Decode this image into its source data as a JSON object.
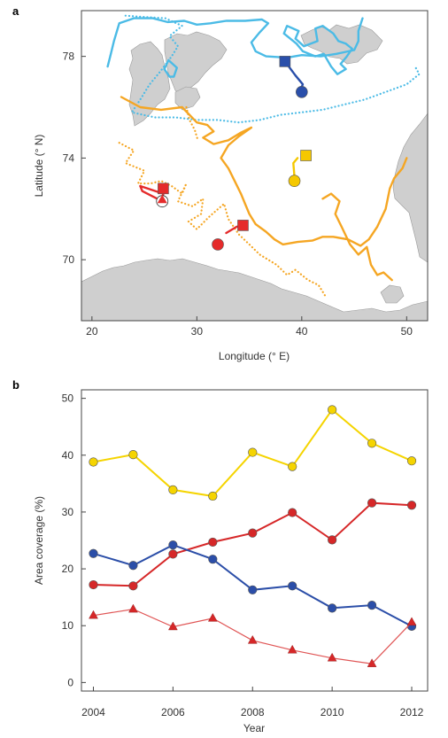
{
  "panels": {
    "a": "a",
    "b": "b"
  },
  "chart_data": [
    {
      "type": "map",
      "xlabel": "Longitude (° E)",
      "ylabel": "Latitude (° N)",
      "xlim": [
        19,
        52
      ],
      "ylim": [
        67.6,
        79.8
      ],
      "xticks": [
        20,
        30,
        40,
        50
      ],
      "yticks": [
        70,
        74,
        78
      ],
      "tracks": [
        {
          "color": "#4bbbe6",
          "style": "solid",
          "points": [
            [
              21.5,
              77.6
            ],
            [
              21.8,
              78.1
            ],
            [
              22.1,
              78.6
            ],
            [
              22.6,
              79.3
            ],
            [
              24.0,
              79.5
            ],
            [
              25.8,
              79.5
            ],
            [
              27.2,
              79.35
            ],
            [
              28.8,
              79.4
            ],
            [
              30.0,
              79.25
            ],
            [
              31.3,
              79.3
            ],
            [
              32.8,
              79.4
            ],
            [
              34.6,
              79.4
            ],
            [
              36.2,
              79.45
            ],
            [
              36.8,
              79.3
            ],
            [
              36.0,
              78.95
            ],
            [
              35.2,
              78.55
            ],
            [
              35.6,
              78.2
            ],
            [
              36.6,
              78.0
            ],
            [
              38.6,
              77.95
            ],
            [
              40.0,
              78.05
            ],
            [
              41.8,
              78.0
            ],
            [
              43.3,
              78.1
            ],
            [
              45.0,
              78.25
            ],
            [
              45.4,
              78.6
            ],
            [
              45.4,
              79.0
            ],
            [
              45.8,
              79.5
            ]
          ]
        },
        {
          "color": "#4bbbe6",
          "style": "solid",
          "points": [
            [
              39.5,
              78.5
            ],
            [
              38.3,
              78.9
            ],
            [
              38.6,
              79.2
            ],
            [
              39.7,
              79.0
            ],
            [
              39.4,
              78.7
            ],
            [
              40.2,
              78.4
            ],
            [
              41.5,
              78.6
            ],
            [
              41.3,
              79.1
            ],
            [
              42.0,
              79.2
            ],
            [
              43.0,
              78.9
            ],
            [
              43.5,
              78.6
            ],
            [
              44.2,
              78.5
            ],
            [
              44.8,
              78.3
            ],
            [
              44.3,
              78.0
            ],
            [
              43.7,
              77.7
            ],
            [
              44.2,
              77.5
            ],
            [
              43.4,
              77.3
            ],
            [
              42.8,
              77.6
            ],
            [
              42.1,
              78.1
            ],
            [
              41.3,
              78.0
            ],
            [
              40.1,
              78.2
            ],
            [
              39.5,
              78.5
            ]
          ]
        },
        {
          "color": "#4bbbe6",
          "style": "solid",
          "points": [
            [
              27.4,
              77.2
            ],
            [
              26.9,
              77.5
            ],
            [
              27.3,
              77.85
            ],
            [
              28.1,
              77.55
            ],
            [
              27.8,
              77.2
            ],
            [
              27.4,
              77.2
            ]
          ]
        },
        {
          "color": "#4bbbe6",
          "style": "dotted",
          "points": [
            [
              23.2,
              79.6
            ],
            [
              25.0,
              79.55
            ],
            [
              27.0,
              79.5
            ],
            [
              28.6,
              79.2
            ],
            [
              27.4,
              78.8
            ],
            [
              28.2,
              78.4
            ],
            [
              27.6,
              78.0
            ],
            [
              26.5,
              77.4
            ],
            [
              25.5,
              76.9
            ],
            [
              24.6,
              76.3
            ],
            [
              23.8,
              75.8
            ],
            [
              26.0,
              75.6
            ],
            [
              28.0,
              75.6
            ],
            [
              30.0,
              75.5
            ],
            [
              32.0,
              75.5
            ],
            [
              34.0,
              75.4
            ],
            [
              36.0,
              75.5
            ],
            [
              38.0,
              75.7
            ],
            [
              40.0,
              75.8
            ],
            [
              42.0,
              75.9
            ],
            [
              44.0,
              76.1
            ],
            [
              46.0,
              76.3
            ],
            [
              48.0,
              76.6
            ],
            [
              50.0,
              76.9
            ],
            [
              51.2,
              77.3
            ],
            [
              50.8,
              77.6
            ]
          ]
        },
        {
          "color": "#f5a623",
          "style": "solid",
          "points": [
            [
              22.8,
              76.4
            ],
            [
              24.6,
              76.0
            ],
            [
              26.6,
              75.9
            ],
            [
              28.6,
              76.0
            ],
            [
              30.0,
              75.4
            ],
            [
              31.0,
              75.3
            ],
            [
              31.6,
              75.05
            ],
            [
              30.6,
              74.8
            ],
            [
              31.6,
              74.55
            ],
            [
              33.0,
              74.7
            ],
            [
              34.2,
              75.0
            ],
            [
              35.2,
              75.2
            ],
            [
              34.0,
              74.85
            ],
            [
              33.0,
              74.5
            ],
            [
              32.3,
              74.0
            ],
            [
              33.0,
              73.6
            ],
            [
              33.6,
              73.1
            ],
            [
              34.2,
              72.6
            ],
            [
              34.6,
              72.2
            ],
            [
              35.0,
              71.8
            ],
            [
              35.6,
              71.4
            ],
            [
              36.6,
              71.1
            ],
            [
              37.4,
              70.8
            ],
            [
              38.2,
              70.6
            ],
            [
              39.6,
              70.7
            ],
            [
              41.0,
              70.75
            ],
            [
              42.0,
              70.9
            ],
            [
              43.0,
              70.9
            ],
            [
              44.4,
              70.8
            ],
            [
              45.6,
              70.55
            ],
            [
              46.4,
              70.8
            ],
            [
              47.2,
              71.3
            ],
            [
              48.0,
              72.0
            ],
            [
              48.4,
              72.8
            ],
            [
              48.8,
              73.2
            ],
            [
              49.6,
              73.6
            ],
            [
              50.0,
              74.0
            ]
          ]
        },
        {
          "color": "#f5a623",
          "style": "solid",
          "points": [
            [
              42.0,
              72.4
            ],
            [
              42.8,
              72.6
            ],
            [
              43.6,
              72.3
            ],
            [
              43.2,
              71.8
            ],
            [
              43.8,
              71.3
            ],
            [
              44.6,
              70.6
            ],
            [
              45.4,
              70.2
            ],
            [
              46.2,
              70.5
            ],
            [
              46.6,
              69.8
            ],
            [
              47.2,
              69.4
            ],
            [
              47.8,
              69.5
            ],
            [
              48.6,
              69.2
            ]
          ]
        },
        {
          "color": "#f5a623",
          "style": "dotted",
          "points": [
            [
              22.6,
              74.6
            ],
            [
              24.0,
              74.3
            ],
            [
              23.2,
              73.8
            ],
            [
              25.0,
              73.5
            ],
            [
              24.4,
              73.0
            ],
            [
              25.6,
              73.0
            ],
            [
              26.6,
              73.1
            ],
            [
              27.6,
              72.9
            ],
            [
              28.6,
              72.6
            ],
            [
              29.0,
              73.0
            ],
            [
              28.2,
              72.3
            ],
            [
              29.6,
              72.1
            ],
            [
              30.6,
              72.4
            ],
            [
              30.4,
              71.8
            ],
            [
              29.2,
              71.5
            ],
            [
              30.0,
              71.2
            ],
            [
              31.2,
              71.7
            ],
            [
              32.6,
              72.2
            ],
            [
              33.0,
              71.6
            ],
            [
              34.0,
              71.0
            ],
            [
              35.0,
              70.6
            ],
            [
              36.0,
              70.2
            ],
            [
              37.6,
              69.8
            ],
            [
              38.6,
              69.4
            ],
            [
              39.4,
              69.6
            ],
            [
              40.6,
              69.2
            ],
            [
              41.6,
              69.0
            ],
            [
              42.2,
              68.6
            ]
          ]
        },
        {
          "color": "#f5a623",
          "style": "dotted",
          "points": [
            [
              29.0,
              76.0
            ],
            [
              29.3,
              75.5
            ],
            [
              29.8,
              75.1
            ],
            [
              30.1,
              74.7
            ]
          ]
        },
        {
          "color": "#e52b2b",
          "style": "solid",
          "points": [
            [
              24.6,
              72.9
            ],
            [
              26.8,
              72.6
            ],
            [
              26.7,
              72.3
            ],
            [
              24.8,
              72.7
            ],
            [
              24.6,
              72.9
            ]
          ]
        },
        {
          "color": "#e52b2b",
          "style": "solid",
          "points": [
            [
              32.8,
              71.05
            ],
            [
              33.8,
              71.3
            ],
            [
              34.4,
              71.35
            ]
          ]
        },
        {
          "color": "#f5c800",
          "style": "solid",
          "points": [
            [
              39.6,
              74.0
            ],
            [
              39.2,
              73.8
            ],
            [
              39.3,
              73.3
            ],
            [
              39.4,
              73.1
            ]
          ]
        },
        {
          "color": "#2a4faa",
          "style": "solid",
          "points": [
            [
              38.4,
              77.8
            ],
            [
              39.4,
              77.25
            ],
            [
              40.1,
              76.9
            ],
            [
              39.8,
              76.6
            ],
            [
              40.0,
              76.45
            ]
          ]
        }
      ],
      "markers": [
        {
          "shape": "square",
          "color": "#2a4faa",
          "lon": 38.4,
          "lat": 77.8
        },
        {
          "shape": "circle",
          "color": "#2a4faa",
          "lon": 40.0,
          "lat": 76.6
        },
        {
          "shape": "square",
          "color": "#f5c800",
          "lon": 40.4,
          "lat": 74.1
        },
        {
          "shape": "circle",
          "color": "#f5c800",
          "lon": 39.3,
          "lat": 73.1
        },
        {
          "shape": "square",
          "color": "#e52b2b",
          "lon": 26.8,
          "lat": 72.8
        },
        {
          "shape": "circle-open",
          "color": "#e52b2b",
          "lon": 26.7,
          "lat": 72.3
        },
        {
          "shape": "triangle",
          "color": "#e52b2b",
          "lon": 26.7,
          "lat": 72.35
        },
        {
          "shape": "square",
          "color": "#e52b2b",
          "lon": 34.4,
          "lat": 71.35
        },
        {
          "shape": "circle",
          "color": "#e52b2b",
          "lon": 32.0,
          "lat": 70.6
        }
      ]
    },
    {
      "type": "line",
      "xlabel": "Year",
      "ylabel": "Area coverage (%)",
      "x": [
        2004,
        2005,
        2006,
        2007,
        2008,
        2009,
        2010,
        2011,
        2012
      ],
      "xlim": [
        2003.7,
        2012.4
      ],
      "ylim": [
        -1.5,
        51.5
      ],
      "xticks": [
        2004,
        2006,
        2008,
        2010,
        2012
      ],
      "yticks": [
        0,
        10,
        20,
        30,
        40,
        50
      ],
      "series": [
        {
          "color": "#f5d400",
          "marker": "circle",
          "values": [
            38.8,
            40.1,
            33.9,
            32.8,
            40.5,
            38.0,
            48.0,
            42.1,
            39.0
          ]
        },
        {
          "color": "#d62728",
          "marker": "circle",
          "values": [
            17.2,
            17.0,
            22.6,
            24.7,
            26.3,
            29.9,
            25.1,
            31.6,
            31.2
          ]
        },
        {
          "color": "#2b4ea8",
          "marker": "circle",
          "values": [
            22.7,
            20.6,
            24.2,
            21.7,
            16.3,
            17.0,
            13.1,
            13.6,
            9.9
          ]
        },
        {
          "color": "#e05555",
          "marker": "triangle",
          "values": [
            11.8,
            12.9,
            9.8,
            11.3,
            7.4,
            5.7,
            4.3,
            3.3,
            10.6
          ]
        }
      ]
    }
  ]
}
